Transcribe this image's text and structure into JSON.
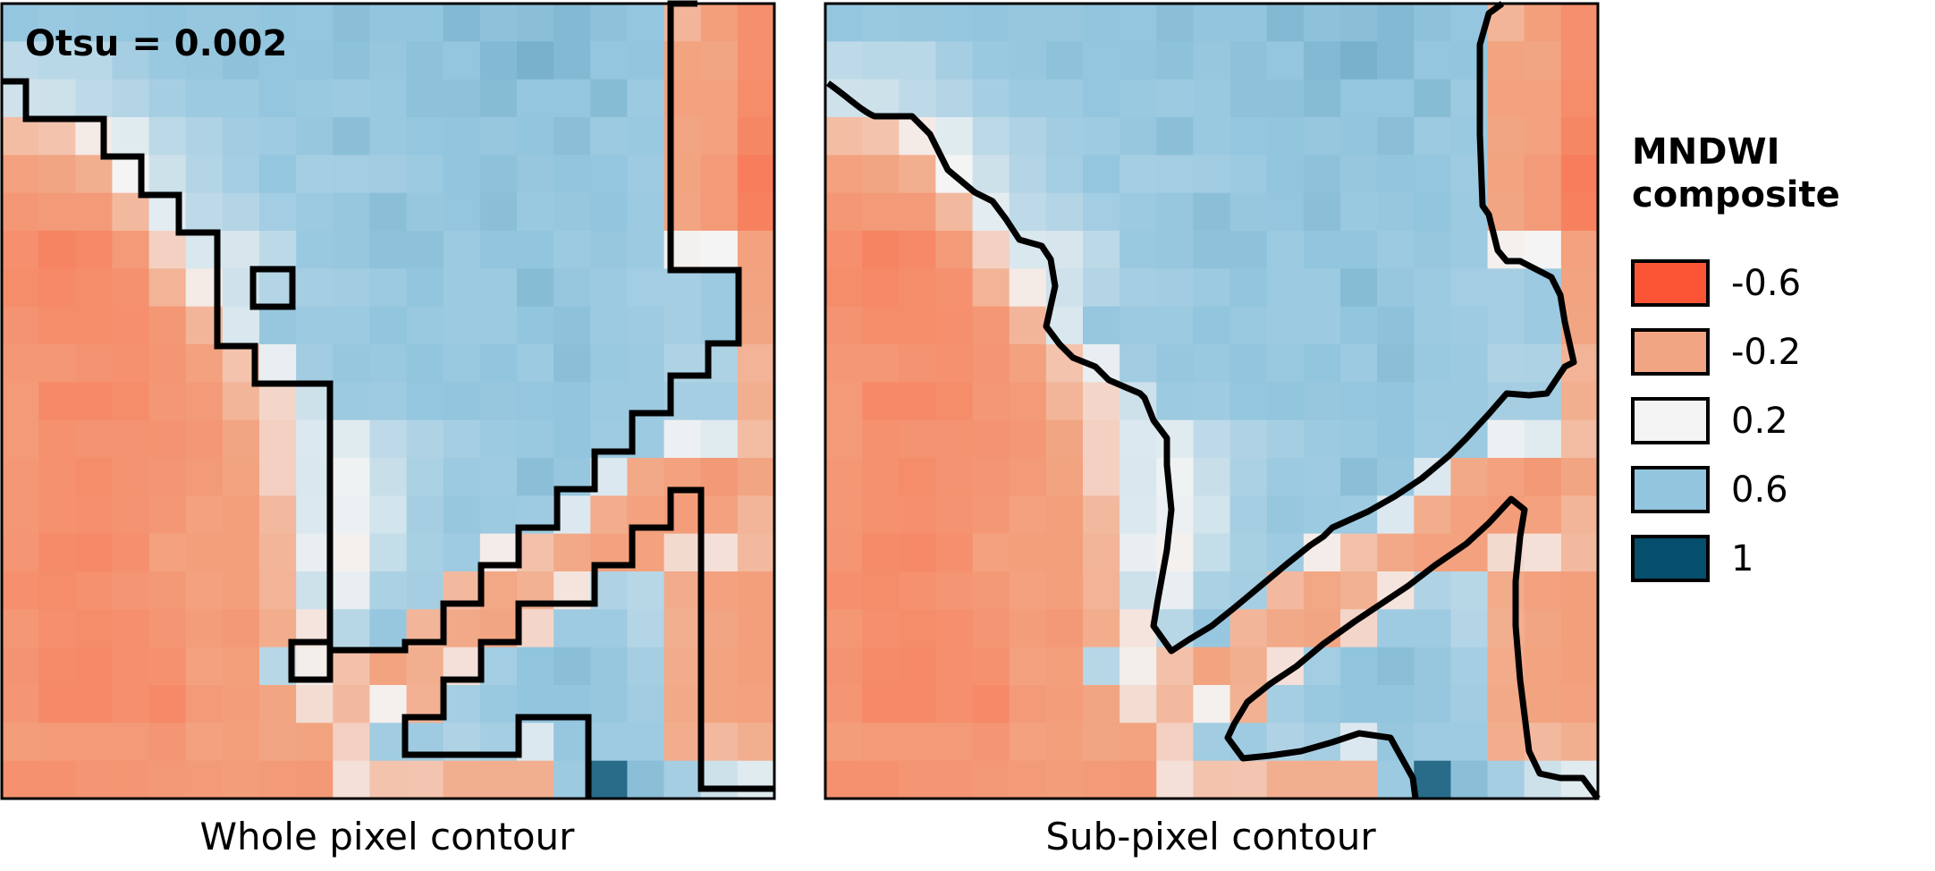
{
  "chart_data": {
    "type": "heatmap",
    "annotation": "Otsu = 0.002",
    "threshold": 0.002,
    "panels": [
      {
        "id": "whole",
        "label": "Whole pixel contour",
        "contour": "pixel-edge"
      },
      {
        "id": "sub",
        "label": "Sub-pixel contour",
        "contour": "interpolated"
      }
    ],
    "legend": {
      "title_lines": [
        "MNDWI",
        "composite"
      ],
      "placement": "right",
      "entries": [
        {
          "label": "-0.6",
          "value": -0.6,
          "color": "#fc5535"
        },
        {
          "label": "-0.2",
          "value": -0.2,
          "color": "#f2a582"
        },
        {
          "label": "0.2",
          "value": 0.2,
          "color": "#f4f4f4"
        },
        {
          "label": "0.6",
          "value": 0.6,
          "color": "#92c5de"
        },
        {
          "label": "1",
          "value": 1.0,
          "color": "#054f6c"
        }
      ]
    },
    "colormap_stops": [
      {
        "value": -0.6,
        "color": "#fc5535"
      },
      {
        "value": -0.2,
        "color": "#f2a582"
      },
      {
        "value": 0.2,
        "color": "#f4f4f4"
      },
      {
        "value": 0.6,
        "color": "#92c5de"
      },
      {
        "value": 1.0,
        "color": "#054f6c"
      }
    ],
    "grid_rows": 21,
    "grid_cols": 21,
    "values": [
      [
        0.59,
        0.57,
        0.58,
        0.59,
        0.6,
        0.58,
        0.58,
        0.6,
        0.59,
        0.62,
        0.6,
        0.6,
        0.64,
        0.61,
        0.62,
        0.64,
        0.61,
        0.59,
        -0.12,
        -0.23,
        -0.31
      ],
      [
        0.42,
        0.44,
        0.44,
        0.52,
        0.57,
        0.58,
        0.61,
        0.59,
        0.6,
        0.61,
        0.58,
        0.61,
        0.59,
        0.64,
        0.67,
        0.64,
        0.59,
        0.6,
        -0.21,
        -0.2,
        -0.31
      ],
      [
        0.35,
        0.36,
        0.42,
        0.46,
        0.52,
        0.56,
        0.56,
        0.59,
        0.57,
        0.56,
        0.57,
        0.61,
        0.61,
        0.63,
        0.59,
        0.59,
        0.63,
        0.56,
        -0.22,
        -0.22,
        -0.32
      ],
      [
        -0.08,
        -0.05,
        0.15,
        0.28,
        0.43,
        0.48,
        0.54,
        0.55,
        0.58,
        0.62,
        0.57,
        0.59,
        0.6,
        0.58,
        0.6,
        0.62,
        0.56,
        0.57,
        -0.2,
        -0.22,
        -0.35
      ],
      [
        -0.22,
        -0.2,
        -0.15,
        0.2,
        0.36,
        0.46,
        0.53,
        0.59,
        0.52,
        0.53,
        0.54,
        0.56,
        0.6,
        0.61,
        0.58,
        0.6,
        0.59,
        0.55,
        -0.21,
        -0.25,
        -0.4
      ],
      [
        -0.27,
        -0.25,
        -0.25,
        -0.1,
        0.27,
        0.42,
        0.46,
        0.53,
        0.56,
        0.58,
        0.62,
        0.58,
        0.59,
        0.62,
        0.57,
        0.58,
        0.6,
        0.56,
        -0.2,
        -0.25,
        -0.38
      ],
      [
        -0.31,
        -0.37,
        -0.34,
        -0.25,
        0.02,
        0.31,
        0.32,
        0.43,
        0.57,
        0.58,
        0.61,
        0.61,
        0.56,
        0.6,
        0.6,
        0.56,
        0.58,
        0.56,
        0.18,
        0.2,
        -0.22
      ],
      [
        -0.32,
        -0.34,
        -0.32,
        -0.3,
        -0.13,
        0.15,
        0.35,
        0.46,
        0.52,
        0.54,
        0.56,
        0.6,
        0.56,
        0.56,
        0.63,
        0.58,
        0.56,
        0.53,
        0.52,
        0.56,
        -0.21
      ],
      [
        -0.29,
        -0.32,
        -0.32,
        -0.31,
        -0.27,
        -0.12,
        0.31,
        0.58,
        0.56,
        0.56,
        0.6,
        0.57,
        0.56,
        0.56,
        0.6,
        0.61,
        0.56,
        0.55,
        0.52,
        0.56,
        -0.2
      ],
      [
        -0.27,
        -0.27,
        -0.29,
        -0.3,
        -0.28,
        -0.22,
        -0.05,
        0.25,
        0.54,
        0.58,
        0.57,
        0.6,
        0.57,
        0.6,
        0.56,
        0.62,
        0.57,
        0.56,
        0.48,
        0.49,
        -0.13
      ],
      [
        -0.25,
        -0.34,
        -0.34,
        -0.32,
        -0.27,
        -0.25,
        -0.12,
        0.05,
        0.36,
        0.56,
        0.55,
        0.59,
        0.6,
        0.58,
        0.59,
        0.6,
        0.56,
        0.56,
        0.52,
        0.52,
        -0.15
      ],
      [
        -0.25,
        -0.3,
        -0.29,
        -0.29,
        -0.29,
        -0.27,
        -0.2,
        0.02,
        0.3,
        0.28,
        0.42,
        0.48,
        0.52,
        0.56,
        0.57,
        0.6,
        0.55,
        0.56,
        0.23,
        0.28,
        -0.08
      ],
      [
        -0.27,
        -0.3,
        -0.32,
        -0.29,
        -0.28,
        -0.25,
        -0.21,
        0.02,
        0.31,
        0.22,
        0.38,
        0.5,
        0.56,
        0.55,
        0.62,
        0.58,
        0.3,
        -0.18,
        -0.22,
        -0.26,
        -0.2
      ],
      [
        -0.27,
        -0.3,
        -0.31,
        -0.29,
        -0.27,
        -0.22,
        -0.23,
        -0.1,
        0.3,
        0.23,
        0.34,
        0.52,
        0.58,
        0.56,
        0.55,
        0.3,
        -0.16,
        -0.22,
        -0.24,
        -0.22,
        -0.12
      ],
      [
        -0.28,
        -0.33,
        -0.34,
        -0.31,
        -0.22,
        -0.23,
        -0.23,
        -0.12,
        0.25,
        0.18,
        0.4,
        0.51,
        0.55,
        0.16,
        -0.06,
        -0.18,
        -0.22,
        -0.22,
        0.07,
        0.1,
        -0.1
      ],
      [
        -0.31,
        -0.32,
        -0.3,
        -0.28,
        -0.26,
        -0.22,
        -0.23,
        -0.13,
        0.36,
        0.25,
        0.5,
        0.52,
        -0.1,
        -0.19,
        -0.14,
        0.12,
        0.48,
        0.45,
        -0.17,
        -0.22,
        -0.23
      ],
      [
        -0.27,
        -0.31,
        -0.32,
        -0.31,
        -0.28,
        -0.24,
        -0.26,
        -0.16,
        0.12,
        0.45,
        0.58,
        -0.12,
        -0.18,
        -0.2,
        0.05,
        0.55,
        0.55,
        0.46,
        -0.15,
        -0.2,
        -0.23
      ],
      [
        -0.29,
        -0.33,
        -0.34,
        -0.31,
        -0.3,
        -0.22,
        -0.23,
        0.45,
        0.17,
        -0.06,
        -0.21,
        -0.15,
        0.1,
        0.53,
        0.6,
        0.62,
        0.58,
        0.52,
        -0.17,
        -0.21,
        -0.23
      ],
      [
        -0.28,
        -0.34,
        -0.34,
        -0.31,
        -0.34,
        -0.25,
        -0.24,
        -0.2,
        0.08,
        -0.1,
        0.18,
        -0.14,
        0.52,
        0.57,
        0.6,
        0.6,
        0.58,
        0.54,
        -0.18,
        -0.21,
        -0.22
      ],
      [
        -0.24,
        -0.25,
        -0.25,
        -0.25,
        -0.28,
        -0.22,
        -0.23,
        -0.2,
        -0.21,
        0.02,
        0.54,
        0.55,
        0.48,
        0.52,
        0.3,
        0.58,
        0.55,
        0.55,
        -0.16,
        -0.1,
        -0.15
      ],
      [
        -0.3,
        -0.3,
        -0.28,
        -0.28,
        -0.26,
        -0.25,
        -0.24,
        -0.25,
        -0.26,
        0.1,
        -0.05,
        -0.04,
        -0.15,
        -0.15,
        -0.15,
        0.56,
        0.9,
        0.62,
        0.52,
        0.36,
        0.28
      ]
    ]
  }
}
